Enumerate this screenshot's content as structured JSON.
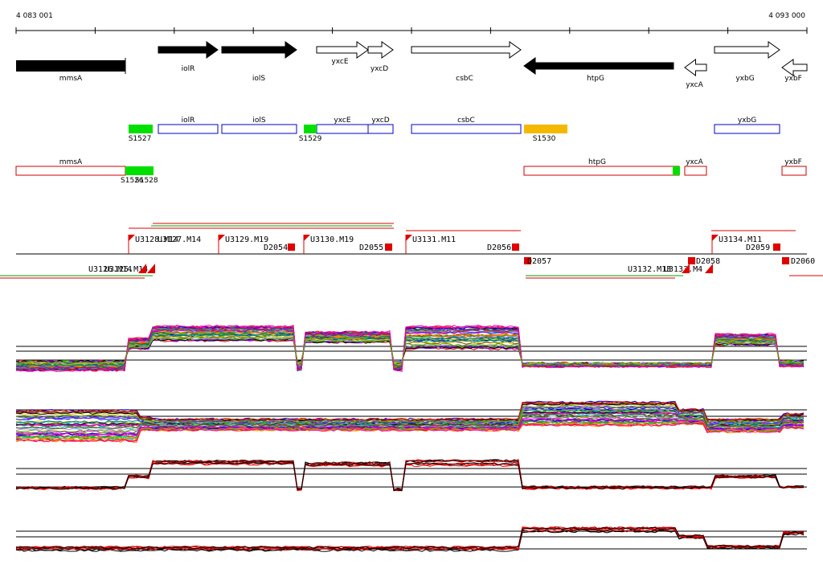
{
  "coordinates": {
    "start": "4 083 001",
    "end": "4 093 000"
  },
  "genes": [
    "mmsA",
    "iolR",
    "iolS",
    "yxcE",
    "yxcD",
    "csbC",
    "htpG",
    "yxcA",
    "yxbG",
    "yxbF"
  ],
  "upregulated_features": {
    "genes": [
      "iolR",
      "iolS",
      "yxcE",
      "yxcD",
      "csbC",
      "yxbG"
    ],
    "segments": [
      "S1527",
      "S1529",
      "S1530"
    ]
  },
  "downregulated_features": {
    "genes": [
      "mmsA",
      "htpG",
      "yxcA",
      "yxbF"
    ],
    "segments": [
      "S1526",
      "S1528"
    ]
  },
  "transcription_units": [
    "U3128.M14",
    "U3127.M14",
    "U3129.M19",
    "U3130.M19",
    "U3131.M11",
    "U3134.M11",
    "U3126.M14",
    "U3125.M14",
    "U3132.M13",
    "U3133.M4"
  ],
  "terminators": [
    "D2054",
    "D2055",
    "D2056",
    "D2059",
    "D2057",
    "D2058",
    "D2060"
  ]
}
